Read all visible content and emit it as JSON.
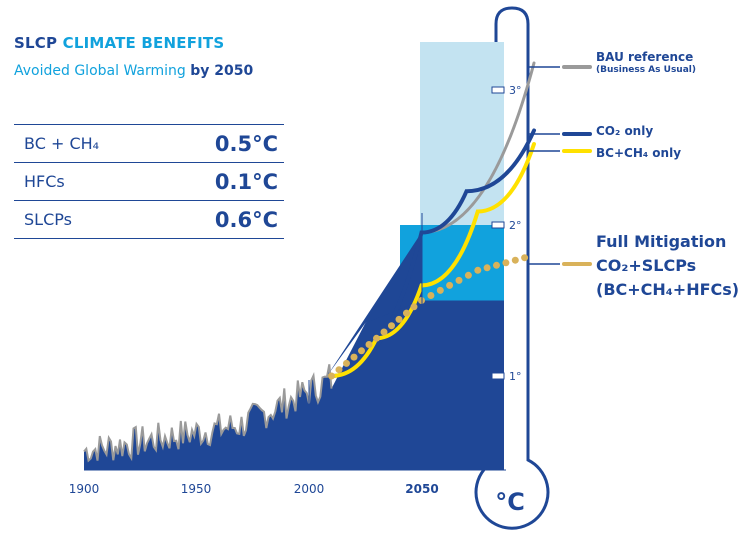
{
  "header": {
    "title_prefix": "SLCP",
    "title_accent": "CLIMATE BENEFITS",
    "subtitle_main": "Avoided Global Warming",
    "subtitle_bold": "by 2050"
  },
  "table": {
    "rows": [
      {
        "label": "BC + CH₄",
        "value": "0.5°C"
      },
      {
        "label": "HFCs",
        "value": "0.1°C"
      },
      {
        "label": "SLCPs",
        "value": "0.6°C"
      }
    ]
  },
  "legend": {
    "bau": "BAU reference",
    "bau_sub": "(Business As Usual)",
    "co2": "CO₂ only",
    "bc_ch4": "BC+CH₄ only",
    "full_line1": "Full Mitigation",
    "full_line2": "CO₂+SLCPs",
    "full_line3": "(BC+CH₄+HFCs)"
  },
  "thermometer": {
    "unit": "°C",
    "ticks": [
      "3°",
      "2°",
      "1°"
    ]
  },
  "colors": {
    "dark_blue": "#1f4796",
    "mid_blue": "#11a2dd",
    "light_blue": "#c3e3f1",
    "bau_grey": "#9a9a9a",
    "co2_blue": "#1f4796",
    "bc_yellow": "#ffe100",
    "full_gold": "#d9b25a"
  },
  "chart_data": {
    "type": "line",
    "x_ticks": [
      "1900",
      "1950",
      "2000",
      "2050"
    ],
    "xlim": [
      1900,
      2100
    ],
    "ylim": [
      0,
      3.5
    ],
    "y_ticks": [
      "1°",
      "2°",
      "3°"
    ],
    "series": [
      {
        "name": "BAU reference",
        "x": [
          2010,
          2050,
          2100
        ],
        "y": [
          1.0,
          1.95,
          3.2
        ]
      },
      {
        "name": "CO₂ only",
        "x": [
          2010,
          2050,
          2070,
          2100
        ],
        "y": [
          1.0,
          1.95,
          2.25,
          2.7
        ]
      },
      {
        "name": "BC+CH₄ only",
        "x": [
          2010,
          2030,
          2050,
          2075,
          2100
        ],
        "y": [
          1.0,
          1.25,
          1.6,
          2.1,
          2.6
        ]
      },
      {
        "name": "Full Mitigation CO₂+SLCPs (BC+CH₄+HFCs)",
        "x": [
          2010,
          2030,
          2050,
          2075,
          2100
        ],
        "y": [
          1.0,
          1.25,
          1.5,
          1.7,
          1.8
        ]
      }
    ]
  }
}
